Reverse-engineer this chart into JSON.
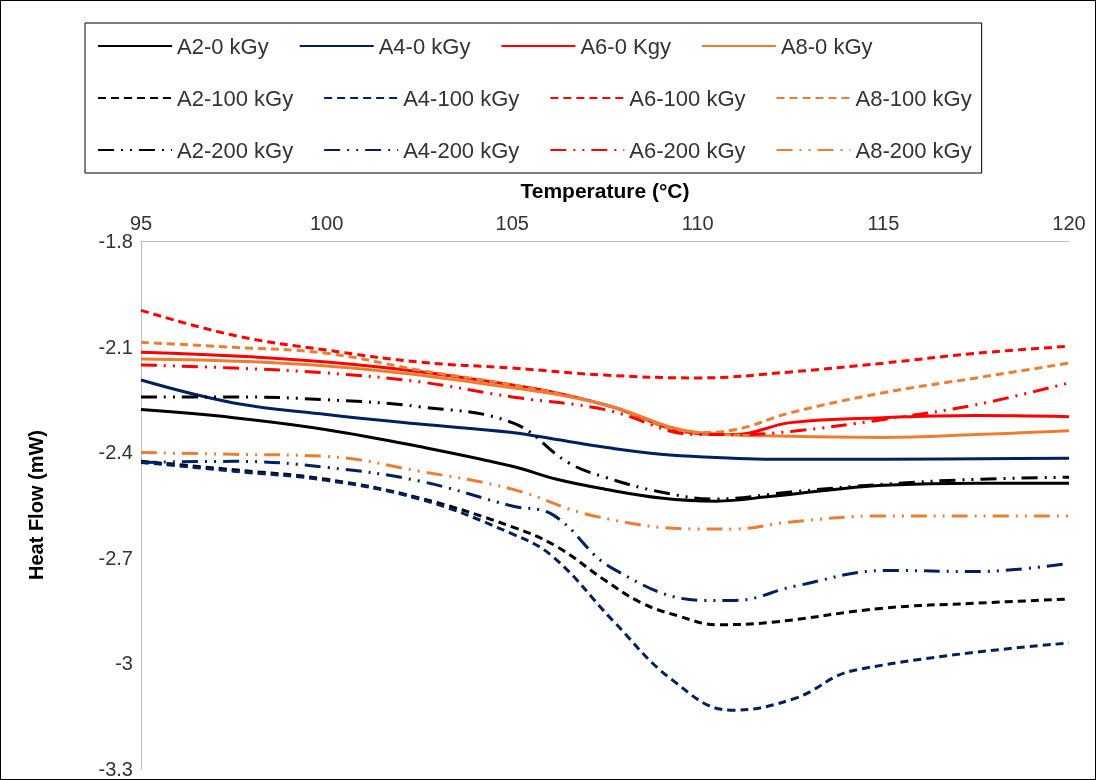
{
  "chart_data": {
    "type": "line",
    "xlabel": "Temperature (°C)",
    "ylabel": "Heat Flow (mW)",
    "xlim": [
      95,
      120
    ],
    "xticks": [
      95,
      100,
      105,
      110,
      115,
      120
    ],
    "ylim": [
      -3.3,
      -1.8
    ],
    "yticks": [
      -1.8,
      -2.1,
      -2.4,
      -2.7,
      -3,
      -3.3
    ],
    "grid": false,
    "legend": "top",
    "marker": "none",
    "series": [
      {
        "name": "A2-0 kGy",
        "color": "#000000",
        "line_style": "solid",
        "x": [
          95,
          97.5,
          100,
          102.5,
          105,
          106.2,
          107.5,
          109,
          110.5,
          112,
          113.5,
          115,
          117.5,
          120
        ],
        "values": [
          -2.279,
          -2.302,
          -2.336,
          -2.384,
          -2.44,
          -2.477,
          -2.505,
          -2.53,
          -2.539,
          -2.525,
          -2.508,
          -2.494,
          -2.488,
          -2.488
        ]
      },
      {
        "name": "A4-0 kGy",
        "color": "#002060",
        "line_style": "solid",
        "x": [
          95,
          97.5,
          100,
          102.5,
          105,
          106.2,
          107.5,
          109,
          110.5,
          112,
          115,
          120
        ],
        "values": [
          -2.195,
          -2.26,
          -2.293,
          -2.32,
          -2.344,
          -2.364,
          -2.386,
          -2.406,
          -2.415,
          -2.42,
          -2.42,
          -2.417
        ]
      },
      {
        "name": "A6-0 Kgy",
        "color": "#ff0000",
        "line_style": "solid",
        "x": [
          95,
          100,
          105,
          107.5,
          110,
          111,
          112.5,
          115,
          117.5,
          120
        ],
        "values": [
          -2.116,
          -2.144,
          -2.209,
          -2.265,
          -2.347,
          -2.35,
          -2.316,
          -2.302,
          -2.296,
          -2.299
        ]
      },
      {
        "name": "A8-0 kGy",
        "color": "#ed7d31",
        "line_style": "solid",
        "x": [
          95,
          100,
          105,
          107.5,
          110,
          112.5,
          115,
          117.5,
          120
        ],
        "values": [
          -2.135,
          -2.155,
          -2.217,
          -2.265,
          -2.344,
          -2.355,
          -2.358,
          -2.35,
          -2.339
        ]
      },
      {
        "name": "A2-100 kGy",
        "color": "#000000",
        "line_style": "dashed",
        "x": [
          95,
          97.5,
          100,
          102.5,
          105,
          106.2,
          107.5,
          108.5,
          109.5,
          110.5,
          112,
          115,
          117.5,
          120
        ],
        "values": [
          -2.426,
          -2.45,
          -2.477,
          -2.53,
          -2.612,
          -2.668,
          -2.764,
          -2.829,
          -2.866,
          -2.89,
          -2.883,
          -2.843,
          -2.829,
          -2.817
        ]
      },
      {
        "name": "A4-100 kGy",
        "color": "#002060",
        "line_style": "dashed",
        "x": [
          95,
          97.5,
          100,
          102.5,
          105,
          106.1,
          107.7,
          109.3,
          110.9,
          112.6,
          114.2,
          120
        ],
        "values": [
          -2.429,
          -2.454,
          -2.48,
          -2.533,
          -2.632,
          -2.697,
          -2.877,
          -3.046,
          -3.133,
          -3.1,
          -3.02,
          -2.942
        ]
      },
      {
        "name": "A6-100 kGy",
        "color": "#ff0000",
        "line_style": "dashed",
        "x": [
          95,
          97.5,
          100,
          102.5,
          105,
          107.5,
          110,
          112.5,
          115,
          117.5,
          120
        ],
        "values": [
          -1.997,
          -2.068,
          -2.11,
          -2.144,
          -2.161,
          -2.181,
          -2.189,
          -2.172,
          -2.147,
          -2.119,
          -2.099
        ]
      },
      {
        "name": "A8-100 kGy",
        "color": "#ed7d31",
        "line_style": "dashed",
        "x": [
          95,
          97.5,
          100,
          102.5,
          105,
          107.5,
          110,
          111,
          112.5,
          115,
          117.5,
          120
        ],
        "values": [
          -2.088,
          -2.102,
          -2.119,
          -2.167,
          -2.209,
          -2.265,
          -2.344,
          -2.336,
          -2.288,
          -2.231,
          -2.189,
          -2.147
        ]
      },
      {
        "name": "A2-200 kGy",
        "color": "#000000",
        "line_style": "dashdot",
        "x": [
          95,
          97.5,
          100,
          102.5,
          105,
          106.5,
          107.5,
          109,
          110.5,
          112.5,
          115,
          117.5,
          120
        ],
        "values": [
          -2.243,
          -2.243,
          -2.251,
          -2.271,
          -2.316,
          -2.429,
          -2.471,
          -2.513,
          -2.533,
          -2.513,
          -2.491,
          -2.477,
          -2.471
        ]
      },
      {
        "name": "A4-200 kGy",
        "color": "#002060",
        "line_style": "dashdot",
        "x": [
          95,
          97.5,
          100,
          102.5,
          105,
          106.1,
          107.7,
          110.2,
          111,
          112.6,
          115.1,
          117.5,
          120
        ],
        "values": [
          -2.429,
          -2.426,
          -2.443,
          -2.482,
          -2.553,
          -2.578,
          -2.73,
          -2.821,
          -2.821,
          -2.781,
          -2.736,
          -2.739,
          -2.716
        ]
      },
      {
        "name": "A6-200 kGy",
        "color": "#ff0000",
        "line_style": "dashdot",
        "x": [
          95,
          97.5,
          100,
          102.5,
          105,
          107.5,
          110,
          111,
          112.5,
          115,
          117.5,
          120
        ],
        "values": [
          -2.152,
          -2.161,
          -2.175,
          -2.2,
          -2.243,
          -2.279,
          -2.35,
          -2.35,
          -2.341,
          -2.307,
          -2.265,
          -2.203
        ]
      },
      {
        "name": "A8-200 kGy",
        "color": "#ed7d31",
        "line_style": "dashdot",
        "x": [
          95,
          97.5,
          100,
          102.5,
          105,
          107.2,
          110,
          111,
          112.5,
          115,
          117.5,
          120
        ],
        "values": [
          -2.401,
          -2.406,
          -2.412,
          -2.454,
          -2.505,
          -2.581,
          -2.618,
          -2.618,
          -2.598,
          -2.581,
          -2.581,
          -2.581
        ]
      }
    ]
  }
}
